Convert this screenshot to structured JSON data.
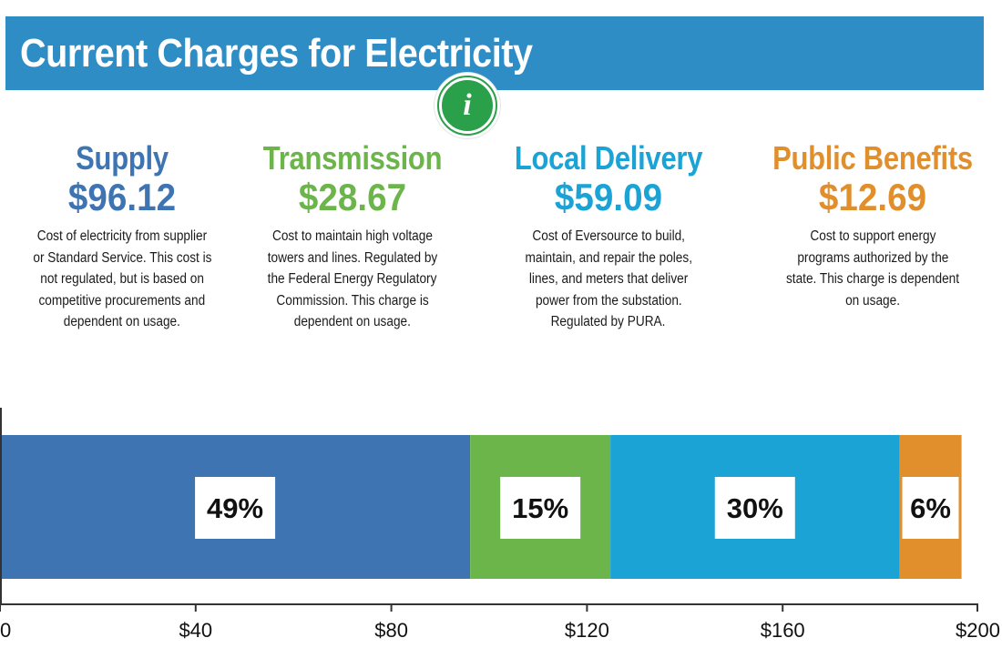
{
  "header": {
    "title": "Current Charges for Electricity",
    "info_icon": "i"
  },
  "colors": {
    "supply": "#3f74b3",
    "transmission": "#6cb54a",
    "local_delivery": "#1aa3d4",
    "public_benefits": "#e08f2c",
    "banner": "#2d8dc4",
    "info": "#2aa04a"
  },
  "charges": [
    {
      "title": "Supply",
      "amount": "$96.12",
      "desc_lines": [
        "Cost of electricity from supplier",
        "or Standard Service. This cost is",
        "not regulated, but is based on",
        "competitive procurements and",
        "dependent on usage."
      ]
    },
    {
      "title": "Transmission",
      "amount": "$28.67",
      "desc_lines": [
        "Cost to maintain high voltage",
        "towers and lines. Regulated by",
        "the Federal Energy Regulatory",
        "Commission. This charge is",
        "dependent on usage."
      ]
    },
    {
      "title": "Local Delivery",
      "amount": "$59.09",
      "desc_lines": [
        "Cost of Eversource to build,",
        "maintain, and repair the poles,",
        "lines, and meters that deliver",
        "power from the substation.",
        "Regulated by PURA."
      ]
    },
    {
      "title": "Public Benefits",
      "amount": "$12.69",
      "desc_lines": [
        "Cost to support energy",
        "programs authorized by the",
        "state. This charge is dependent",
        "on usage."
      ]
    }
  ],
  "chart_data": {
    "type": "bar",
    "orientation": "horizontal-stacked",
    "series": [
      {
        "name": "Supply",
        "value": 96.12,
        "label": "49%"
      },
      {
        "name": "Transmission",
        "value": 28.67,
        "label": "15%"
      },
      {
        "name": "Local Delivery",
        "value": 59.09,
        "label": "30%"
      },
      {
        "name": "Public Benefits",
        "value": 12.69,
        "label": "6%"
      }
    ],
    "xlim": [
      0,
      200
    ],
    "xticks": [
      {
        "value": 0,
        "label": "0"
      },
      {
        "value": 40,
        "label": "$40"
      },
      {
        "value": 80,
        "label": "$80"
      },
      {
        "value": 120,
        "label": "$120"
      },
      {
        "value": 160,
        "label": "$160"
      },
      {
        "value": 200,
        "label": "$200"
      }
    ],
    "title": "",
    "xlabel": "",
    "ylabel": ""
  }
}
